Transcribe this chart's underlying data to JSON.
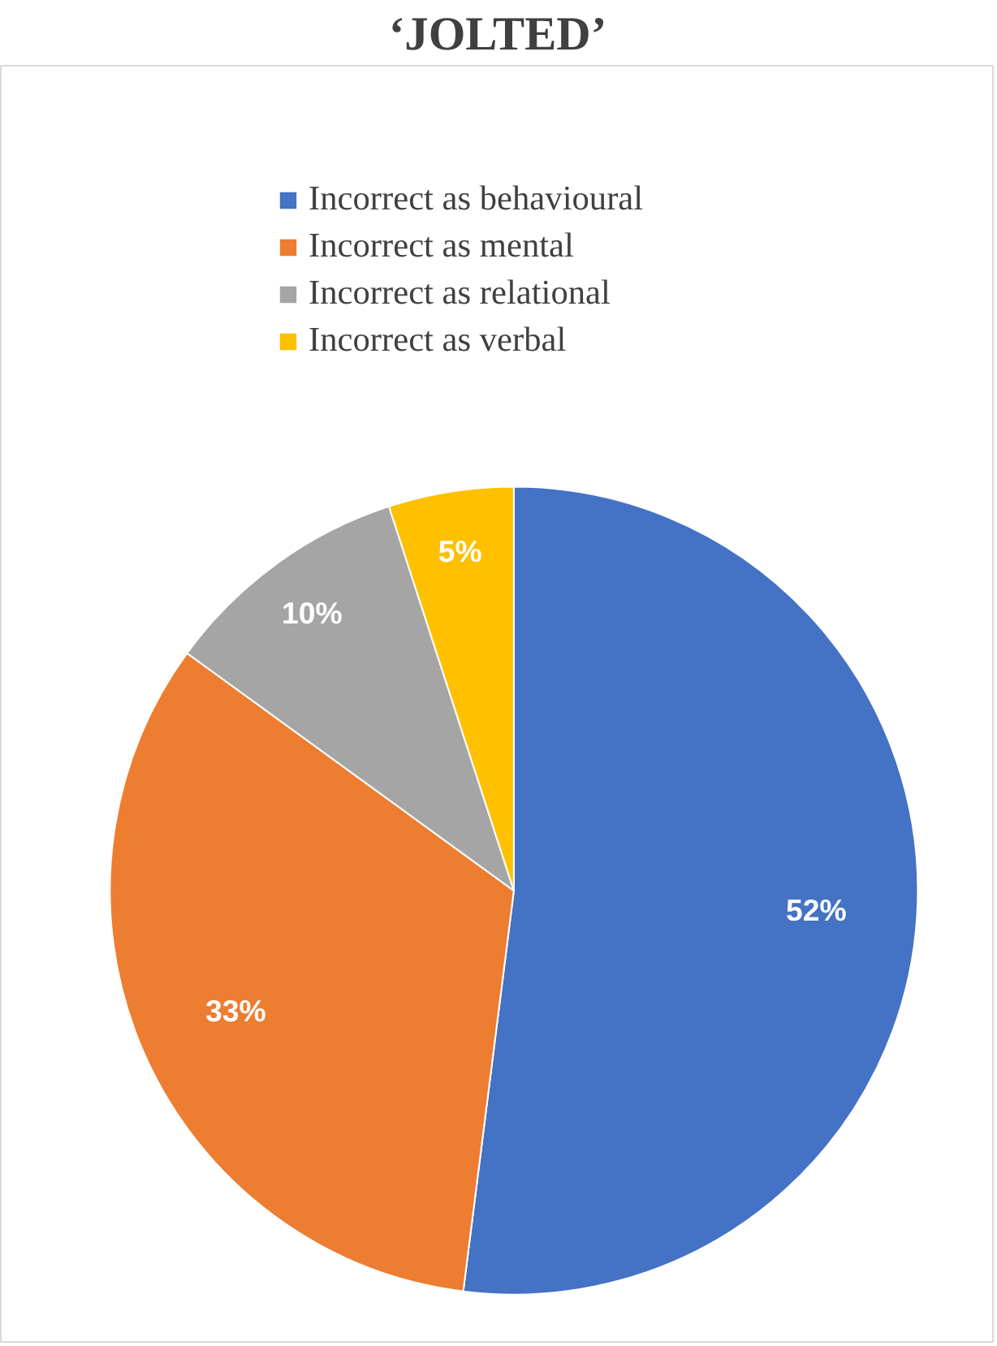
{
  "chart_data": {
    "type": "pie",
    "title": "‘JOLTED’",
    "categories": [
      "Incorrect as behavioural",
      "Incorrect as mental",
      "Incorrect as relational",
      "Incorrect as verbal"
    ],
    "values": [
      52,
      33,
      10,
      5
    ],
    "colors": [
      "#4472c4",
      "#ed7d31",
      "#a5a5a5",
      "#ffc000"
    ],
    "value_labels": [
      "52%",
      "33%",
      "10%",
      "5%"
    ],
    "legend": "top"
  }
}
